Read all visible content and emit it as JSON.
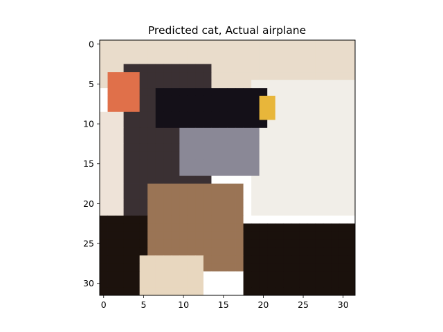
{
  "chart_data": {
    "type": "heatmap",
    "title": "Predicted cat, Actual airplane",
    "xlabel": "",
    "ylabel": "",
    "xlim": [
      -0.5,
      31.5
    ],
    "ylim": [
      31.5,
      -0.5
    ],
    "grid": false,
    "image_size": [
      32,
      32
    ],
    "x_ticks": [
      0,
      5,
      10,
      15,
      20,
      25,
      30
    ],
    "x_tick_labels": [
      "0",
      "5",
      "10",
      "15",
      "20",
      "25",
      "30"
    ],
    "y_ticks": [
      0,
      5,
      10,
      15,
      20,
      25,
      30
    ],
    "y_tick_labels": [
      "0",
      "5",
      "10",
      "15",
      "20",
      "25",
      "30"
    ],
    "pixel_regions": [
      {
        "label": "background top",
        "rows": [
          0,
          5
        ],
        "cols": [
          0,
          31
        ],
        "color": "#e9dccb"
      },
      {
        "label": "background bright right",
        "rows": [
          5,
          21
        ],
        "cols": [
          19,
          31
        ],
        "color": "#f1eee8"
      },
      {
        "label": "sky left",
        "rows": [
          9,
          21
        ],
        "cols": [
          0,
          3
        ],
        "color": "#eee3d8"
      },
      {
        "label": "dark body",
        "rows": [
          3,
          22
        ],
        "cols": [
          3,
          13
        ],
        "color": "#3a3033"
      },
      {
        "label": "dark wing band",
        "rows": [
          6,
          10
        ],
        "cols": [
          7,
          20
        ],
        "color": "#141018"
      },
      {
        "label": "grey wing",
        "rows": [
          11,
          16
        ],
        "cols": [
          10,
          19
        ],
        "color": "#8a8896"
      },
      {
        "label": "red spot",
        "rows": [
          4,
          8
        ],
        "cols": [
          1,
          4
        ],
        "color": "#e0704a"
      },
      {
        "label": "yellow spot",
        "rows": [
          7,
          9
        ],
        "cols": [
          20,
          21
        ],
        "color": "#e8b63a"
      },
      {
        "label": "brown middle",
        "rows": [
          18,
          28
        ],
        "cols": [
          6,
          17
        ],
        "color": "#9a7455"
      },
      {
        "label": "dark bottom left",
        "rows": [
          22,
          31
        ],
        "cols": [
          0,
          5
        ],
        "color": "#1c120d"
      },
      {
        "label": "dark bottom right",
        "rows": [
          23,
          31
        ],
        "cols": [
          18,
          31
        ],
        "color": "#1a110c"
      },
      {
        "label": "light bottom",
        "rows": [
          27,
          31
        ],
        "cols": [
          5,
          12
        ],
        "color": "#e8d7bf"
      }
    ]
  }
}
